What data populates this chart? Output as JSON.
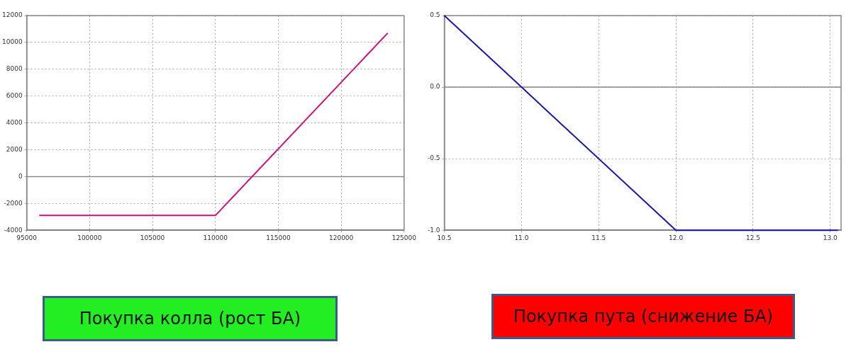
{
  "chart_data": [
    {
      "type": "line",
      "x": [
        96000,
        110000,
        123700
      ],
      "values": [
        -2900,
        -2900,
        10700
      ],
      "color": "#cc1177",
      "xlim": [
        95000,
        125000
      ],
      "xticks": [
        95000,
        100000,
        105000,
        110000,
        115000,
        120000,
        125000
      ],
      "ylim": [
        -4000,
        12000
      ],
      "yticks": [
        -4000,
        -2000,
        0,
        2000,
        4000,
        6000,
        8000,
        10000,
        12000
      ],
      "grid": true,
      "ref_lines": [
        {
          "axis": "y",
          "value": 0
        }
      ],
      "annotations": [
        "Покупка колла (рост БА)"
      ]
    },
    {
      "type": "line",
      "x": [
        10.5,
        11,
        12,
        13.05
      ],
      "values": [
        0.5,
        0,
        -1,
        -1
      ],
      "color": "#1a1aaa",
      "xlim": [
        10.5,
        13.07
      ],
      "xticks": [
        10.5,
        {
          "value": 11,
          "label": "11.0"
        },
        11.5,
        {
          "value": 12,
          "label": "12.0"
        },
        12.5,
        {
          "value": 13,
          "label": "13.0"
        }
      ],
      "ylim": [
        -1,
        0.5
      ],
      "yticks": [
        {
          "value": -1,
          "label": "-1.0"
        },
        -0.5,
        {
          "value": 0,
          "label": "0.0"
        },
        0.5
      ],
      "grid": true,
      "ref_lines": [
        {
          "axis": "y",
          "value": 0
        }
      ],
      "annotations": [
        "Покупка пута (снижение БА)"
      ]
    }
  ]
}
